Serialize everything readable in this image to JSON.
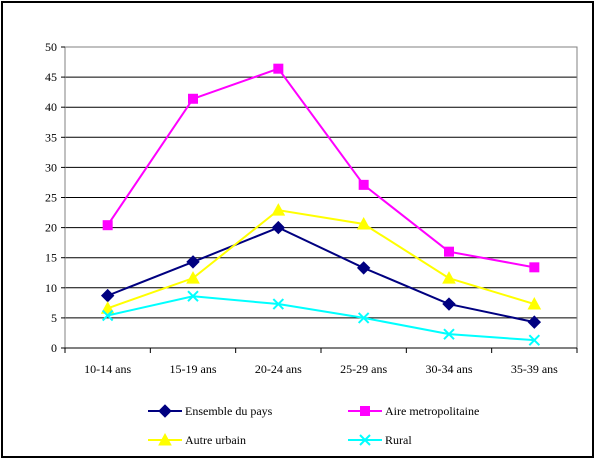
{
  "chart_data": {
    "type": "line",
    "categories": [
      "10-14 ans",
      "15-19 ans",
      "20-24 ans",
      "25-29 ans",
      "30-34 ans",
      "35-39 ans"
    ],
    "ylim": [
      0,
      50
    ],
    "yticks": [
      0,
      5,
      10,
      15,
      20,
      25,
      30,
      35,
      40,
      45,
      50
    ],
    "grid": true,
    "legend_position": "bottom",
    "series": [
      {
        "name": "Ensemble du pays",
        "color": "#000080",
        "marker": "diamond",
        "values": [
          8.7,
          14.3,
          20.0,
          13.3,
          7.3,
          4.3
        ]
      },
      {
        "name": "Aire metropolitaine",
        "color": "#ff00ff",
        "marker": "square",
        "values": [
          20.4,
          41.4,
          46.4,
          27.1,
          16.0,
          13.4
        ]
      },
      {
        "name": "Autre urbain",
        "color": "#ffff00",
        "marker": "triangle",
        "values": [
          6.6,
          11.6,
          22.9,
          20.6,
          11.6,
          7.3
        ]
      },
      {
        "name": "Rural",
        "color": "#00ffff",
        "marker": "x",
        "values": [
          5.4,
          8.6,
          7.3,
          5.0,
          2.3,
          1.3
        ]
      }
    ]
  }
}
